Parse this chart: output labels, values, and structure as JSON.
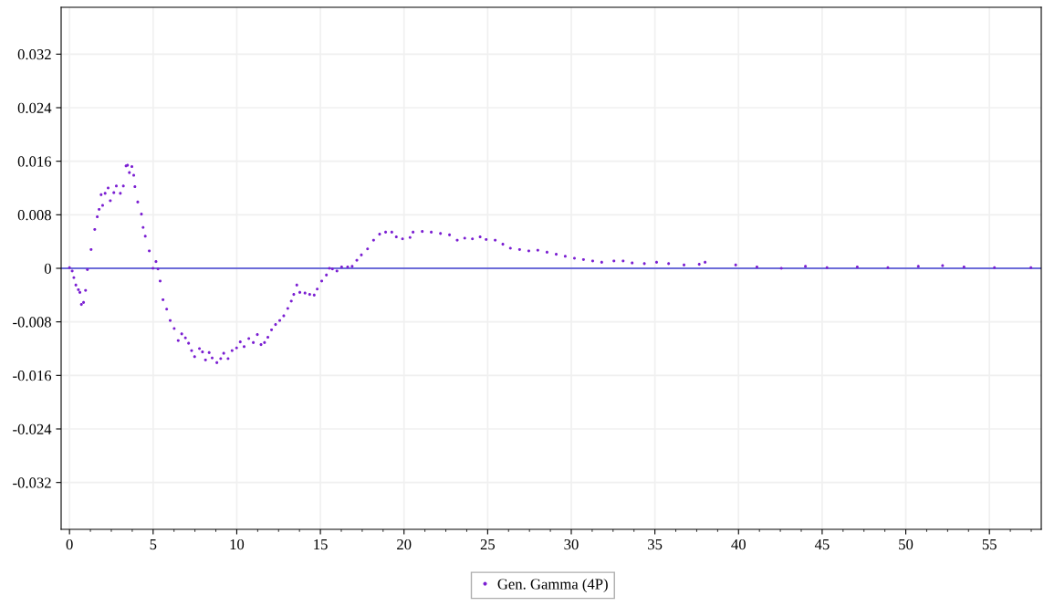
{
  "chart_data": {
    "type": "scatter",
    "grid": true,
    "legend": "bottom",
    "xlim": [
      -0.5,
      58.1
    ],
    "xticks": [
      0,
      5,
      10,
      15,
      20,
      25,
      30,
      35,
      40,
      45,
      50,
      55
    ],
    "ylim": [
      -0.039,
      0.039
    ],
    "yticks": [
      -0.032,
      -0.024,
      -0.016,
      -0.008,
      0,
      0.008,
      0.016,
      0.024,
      0.032
    ],
    "ref_lines": [
      {
        "axis": "y",
        "value": 0,
        "color": "#3f3fcf",
        "line_style": "solid"
      }
    ],
    "series": [
      {
        "name": "Gen. Gamma (4P)",
        "color": "#7b1fd2",
        "x": [
          0,
          0.16,
          0.26,
          0.38,
          0.53,
          0.62,
          0.71,
          0.84,
          0.96,
          1.07,
          1.29,
          1.51,
          1.66,
          1.77,
          1.89,
          1.98,
          2.13,
          2.31,
          2.44,
          2.65,
          2.8,
          3.04,
          3.22,
          3.38,
          3.47,
          3.58,
          3.73,
          3.84,
          3.91,
          4.08,
          4.3,
          4.4,
          4.53,
          4.77,
          4.99,
          5.17,
          5.29,
          5.42,
          5.59,
          5.81,
          6.02,
          6.26,
          6.5,
          6.71,
          6.93,
          7.12,
          7.3,
          7.48,
          7.77,
          7.95,
          8.13,
          8.35,
          8.53,
          8.81,
          9.04,
          9.22,
          9.48,
          9.72,
          9.99,
          10.21,
          10.44,
          10.72,
          10.99,
          11.23,
          11.45,
          11.66,
          11.86,
          12.08,
          12.32,
          12.57,
          12.81,
          13.05,
          13.26,
          13.41,
          13.59,
          13.77,
          14.08,
          14.36,
          14.63,
          14.81,
          15.08,
          15.36,
          15.54,
          15.72,
          15.99,
          16.27,
          16.63,
          16.9,
          17.18,
          17.45,
          17.82,
          18.18,
          18.54,
          18.9,
          19.27,
          19.54,
          19.91,
          20.36,
          20.54,
          21.09,
          21.63,
          22.18,
          22.72,
          23.18,
          23.63,
          24.09,
          24.55,
          24.91,
          25.45,
          25.91,
          26.36,
          26.91,
          27.46,
          28.0,
          28.55,
          29.1,
          29.64,
          30.19,
          30.73,
          31.28,
          31.82,
          32.55,
          33.1,
          33.64,
          34.37,
          35.1,
          35.82,
          36.74,
          37.65,
          38.0,
          39.83,
          41.1,
          42.56,
          44.0,
          45.29,
          47.1,
          48.93,
          50.75,
          52.2,
          53.48,
          55.3,
          57.48
        ],
        "values": [
          0.0001,
          -0.0004,
          -0.0014,
          -0.0025,
          -0.0032,
          -0.0036,
          -0.0054,
          -0.0051,
          -0.0033,
          -0.0002,
          0.0028,
          0.0058,
          0.0077,
          0.0088,
          0.011,
          0.0094,
          0.0112,
          0.012,
          0.0101,
          0.0113,
          0.0123,
          0.0112,
          0.0123,
          0.0153,
          0.0154,
          0.0143,
          0.0152,
          0.0139,
          0.0122,
          0.0099,
          0.0081,
          0.0061,
          0.0048,
          0.0026,
          0,
          0.001,
          -0.0001,
          -0.0019,
          -0.0047,
          -0.0061,
          -0.0078,
          -0.009,
          -0.0108,
          -0.0098,
          -0.0104,
          -0.0112,
          -0.0123,
          -0.0132,
          -0.012,
          -0.0125,
          -0.0137,
          -0.0126,
          -0.0134,
          -0.0141,
          -0.0135,
          -0.0127,
          -0.0135,
          -0.0123,
          -0.0119,
          -0.011,
          -0.0117,
          -0.0105,
          -0.0111,
          -0.0099,
          -0.0114,
          -0.0111,
          -0.0103,
          -0.0092,
          -0.0084,
          -0.0078,
          -0.0071,
          -0.006,
          -0.0049,
          -0.0039,
          -0.0025,
          -0.0036,
          -0.0037,
          -0.0039,
          -0.004,
          -0.0031,
          -0.0019,
          -0.001,
          0,
          -0.0001,
          -0.0004,
          0.0002,
          0.0002,
          0.0003,
          0.0012,
          0.002,
          0.0029,
          0.0042,
          0.0051,
          0.0054,
          0.0054,
          0.0047,
          0.0044,
          0.0046,
          0.0054,
          0.0055,
          0.0054,
          0.0052,
          0.005,
          0.0042,
          0.0045,
          0.0044,
          0.0047,
          0.0043,
          0.0042,
          0.0036,
          0.003,
          0.0028,
          0.0026,
          0.0027,
          0.0024,
          0.0021,
          0.0018,
          0.0015,
          0.0013,
          0.0011,
          0.0009,
          0.0011,
          0.0011,
          0.0008,
          0.0007,
          0.0009,
          0.0007,
          0.0005,
          0.0006,
          0.0009,
          0.0005,
          0.0002,
          0,
          0.0003,
          0.0001,
          0.0002,
          0.0001,
          0.0003,
          0.0004,
          0.0002,
          0.0001,
          0.0001
        ]
      }
    ]
  }
}
